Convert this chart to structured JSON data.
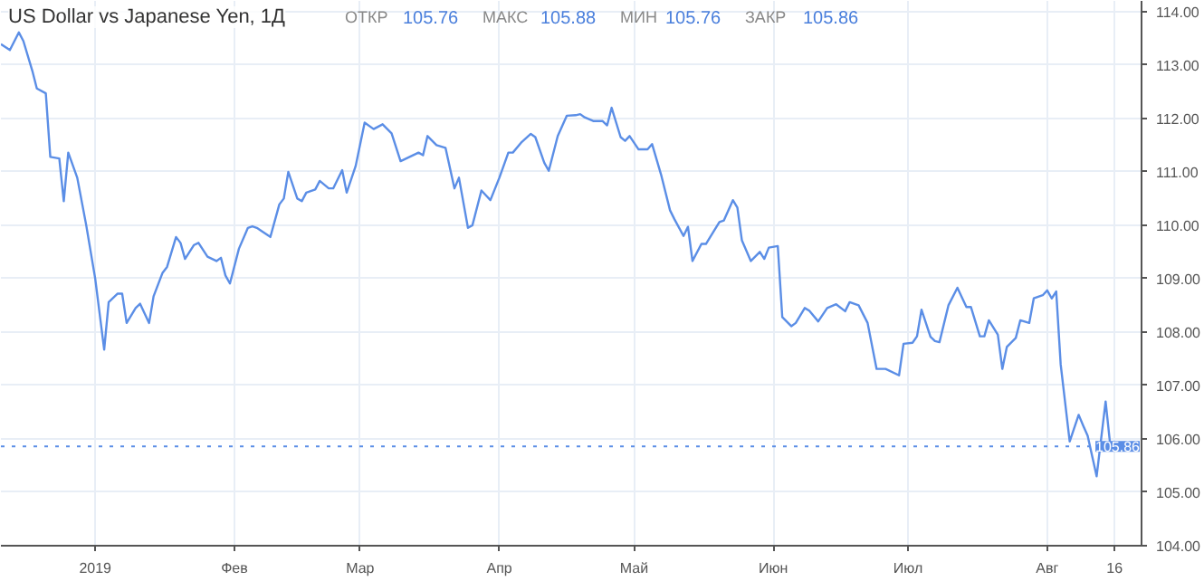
{
  "chart_data": {
    "type": "line",
    "title": "US Dollar vs Japanese Yen, 1Д",
    "annotations": [
      "ОТКР 105.76",
      "МАКС 105.88",
      "МИН 105.76",
      "ЗАКР 105.86"
    ],
    "x": [
      "2018-12-11",
      "2018-12-13",
      "2018-12-15",
      "2018-12-16",
      "2018-12-18",
      "2018-12-19",
      "2018-12-21",
      "2018-12-22",
      "2018-12-24",
      "2018-12-25",
      "2018-12-26",
      "2018-12-28",
      "2018-12-30",
      "2019-01-01",
      "2019-01-03",
      "2019-01-04",
      "2019-01-06",
      "2019-01-07",
      "2019-01-08",
      "2019-01-10",
      "2019-01-11",
      "2019-01-13",
      "2019-01-14",
      "2019-01-16",
      "2019-01-17",
      "2019-01-19",
      "2019-01-20",
      "2019-01-21",
      "2019-01-23",
      "2019-01-24",
      "2019-01-26",
      "2019-01-28",
      "2019-01-29",
      "2019-01-30",
      "2019-01-31",
      "2019-02-02",
      "2019-02-04",
      "2019-02-05",
      "2019-02-06",
      "2019-02-09",
      "2019-02-11",
      "2019-02-12",
      "2019-02-13",
      "2019-02-15",
      "2019-02-16",
      "2019-02-17",
      "2019-02-19",
      "2019-02-20",
      "2019-02-22",
      "2019-02-23",
      "2019-02-25",
      "2019-02-26",
      "2019-02-28",
      "2019-03-02",
      "2019-03-04",
      "2019-03-06",
      "2019-03-08",
      "2019-03-10",
      "2019-03-12",
      "2019-03-14",
      "2019-03-15",
      "2019-03-16",
      "2019-03-18",
      "2019-03-20",
      "2019-03-22",
      "2019-03-23",
      "2019-03-25",
      "2019-03-26",
      "2019-03-28",
      "2019-03-30",
      "2019-04-01",
      "2019-04-03",
      "2019-04-04",
      "2019-04-06",
      "2019-04-08",
      "2019-04-09",
      "2019-04-11",
      "2019-04-12",
      "2019-04-14",
      "2019-04-16",
      "2019-04-18",
      "2019-04-19",
      "2019-04-20",
      "2019-04-22",
      "2019-04-24",
      "2019-04-25",
      "2019-04-26",
      "2019-04-28",
      "2019-04-29",
      "2019-04-30",
      "2019-05-02",
      "2019-05-04",
      "2019-05-05",
      "2019-05-07",
      "2019-05-09",
      "2019-05-10",
      "2019-05-12",
      "2019-05-13",
      "2019-05-14",
      "2019-05-16",
      "2019-05-17",
      "2019-05-20",
      "2019-05-21",
      "2019-05-23",
      "2019-05-24",
      "2019-05-25",
      "2019-05-27",
      "2019-05-29",
      "2019-05-30",
      "2019-05-31",
      "2019-06-02",
      "2019-06-03",
      "2019-06-05",
      "2019-06-06",
      "2019-06-08",
      "2019-06-09",
      "2019-06-11",
      "2019-06-13",
      "2019-06-15",
      "2019-06-17",
      "2019-06-18",
      "2019-06-20",
      "2019-06-22",
      "2019-06-24",
      "2019-06-26",
      "2019-06-29",
      "2019-06-30",
      "2019-07-02",
      "2019-07-03",
      "2019-07-04",
      "2019-07-06",
      "2019-07-07",
      "2019-07-08",
      "2019-07-10",
      "2019-07-12",
      "2019-07-14",
      "2019-07-15",
      "2019-07-17",
      "2019-07-18",
      "2019-07-19",
      "2019-07-21",
      "2019-07-22",
      "2019-07-23",
      "2019-07-25",
      "2019-07-26",
      "2019-07-28",
      "2019-07-29",
      "2019-07-31",
      "2019-08-01",
      "2019-08-02",
      "2019-08-03",
      "2019-08-04",
      "2019-08-06",
      "2019-08-08",
      "2019-08-09",
      "2019-08-10",
      "2019-08-12",
      "2019-08-14",
      "2019-08-15",
      "2019-08-16"
    ],
    "series": [
      {
        "color": "#5b8ee6",
        "values": [
          113.39,
          113.28,
          113.61,
          113.45,
          112.89,
          112.56,
          112.47,
          111.28,
          111.25,
          110.45,
          111.36,
          110.89,
          110.0,
          109.0,
          107.67,
          108.56,
          108.72,
          108.72,
          108.17,
          108.45,
          108.53,
          108.17,
          108.67,
          109.11,
          109.22,
          109.78,
          109.67,
          109.37,
          109.63,
          109.67,
          109.41,
          109.33,
          109.39,
          109.06,
          108.91,
          109.56,
          109.95,
          109.98,
          109.95,
          109.78,
          110.39,
          110.5,
          111.0,
          110.5,
          110.45,
          110.61,
          110.67,
          110.83,
          110.69,
          110.69,
          111.03,
          110.61,
          111.11,
          111.92,
          111.8,
          111.89,
          111.72,
          111.2,
          111.28,
          111.36,
          111.31,
          111.67,
          111.5,
          111.45,
          110.69,
          110.89,
          109.95,
          110.0,
          110.65,
          110.47,
          110.89,
          111.36,
          111.36,
          111.56,
          111.71,
          111.65,
          111.17,
          111.02,
          111.67,
          112.05,
          112.06,
          112.08,
          112.02,
          111.95,
          111.95,
          111.87,
          112.2,
          111.65,
          111.58,
          111.67,
          111.42,
          111.42,
          111.52,
          110.95,
          110.28,
          110.11,
          109.8,
          109.97,
          109.33,
          109.65,
          109.65,
          110.06,
          110.09,
          110.47,
          110.33,
          109.72,
          109.33,
          109.5,
          109.37,
          109.58,
          109.61,
          108.28,
          108.11,
          108.17,
          108.45,
          108.4,
          108.2,
          108.45,
          108.52,
          108.39,
          108.56,
          108.5,
          108.17,
          107.31,
          107.31,
          107.19,
          107.78,
          107.8,
          107.92,
          108.42,
          107.91,
          107.83,
          107.81,
          108.5,
          108.83,
          108.47,
          108.47,
          107.92,
          107.92,
          108.22,
          107.95,
          107.31,
          107.72,
          107.89,
          108.22,
          108.17,
          108.63,
          108.69,
          108.78,
          108.63,
          108.76,
          107.39,
          105.95,
          106.45,
          106.25,
          106.06,
          105.3,
          106.7,
          105.91,
          105.86
        ]
      }
    ],
    "xlim": [
      "2018-12-11",
      "2019-08-22"
    ],
    "xticks": [
      {
        "value": "2019-01-01",
        "label": "2019"
      },
      {
        "value": "2019-02-01",
        "label": "Фев"
      },
      {
        "value": "2019-03-01",
        "label": "Мар"
      },
      {
        "value": "2019-04-01",
        "label": "Апр"
      },
      {
        "value": "2019-05-01",
        "label": "Май"
      },
      {
        "value": "2019-06-01",
        "label": "Июн"
      },
      {
        "value": "2019-07-01",
        "label": "Июл"
      },
      {
        "value": "2019-08-01",
        "label": "Авг"
      },
      {
        "value": "2019-08-16",
        "label": "16"
      }
    ],
    "ylim": [
      104,
      114.2
    ],
    "yticks": [
      {
        "value": 104,
        "label": "104.00"
      },
      {
        "value": 105,
        "label": "105.00"
      },
      {
        "value": 106,
        "label": "106.00"
      },
      {
        "value": 107,
        "label": "107.00"
      },
      {
        "value": 108,
        "label": "108.00"
      },
      {
        "value": 109,
        "label": "109.00"
      },
      {
        "value": 110,
        "label": "110.00"
      },
      {
        "value": 111,
        "label": "111.00"
      },
      {
        "value": 112,
        "label": "112.00"
      },
      {
        "value": 113,
        "label": "113.00"
      },
      {
        "value": 114,
        "label": "114.00"
      }
    ],
    "ref_lines": [
      {
        "axis": "y",
        "value": 105.86,
        "label": "105.86",
        "color": "#5b8ee6",
        "line_style": "dotted"
      }
    ],
    "grid": true,
    "marker": "none",
    "line_style": "solid"
  }
}
